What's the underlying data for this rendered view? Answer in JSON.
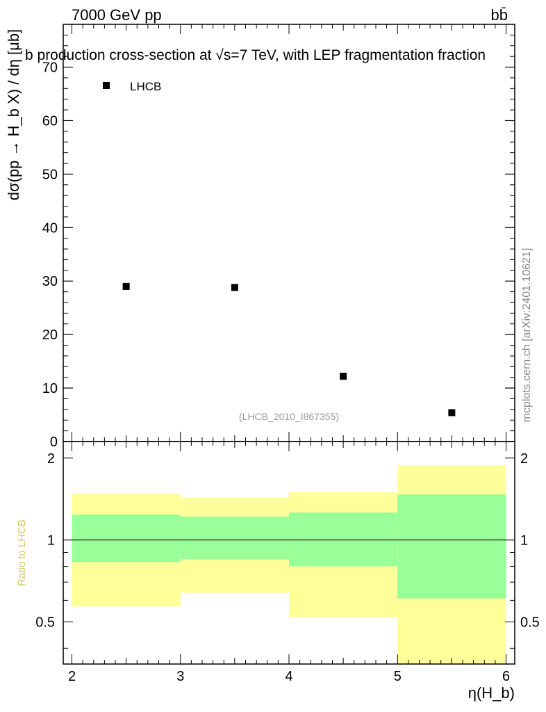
{
  "header": {
    "left": "7000 GeV pp",
    "right": "bb̄"
  },
  "watermark": "mcplots.cern.ch [arXiv:2401.10621]",
  "chart_data": [
    {
      "type": "scatter",
      "title": "b production cross-section at √s=7 TeV, with LEP fragmentation fraction",
      "ylabel": "dσ(pp → H_b X) / dη [μb]",
      "ylim": [
        0,
        78
      ],
      "yticks": [
        0,
        10,
        20,
        30,
        40,
        50,
        60,
        70
      ],
      "xlim": [
        1.92,
        6.08
      ],
      "legend": {
        "position": "top-left",
        "entries": [
          "LHCB"
        ]
      },
      "annotation": "(LHCB_2010_I867355)",
      "series": [
        {
          "name": "LHCB",
          "x": [
            2.5,
            3.5,
            4.5,
            5.5
          ],
          "y": [
            29.0,
            28.8,
            12.2,
            5.4
          ]
        }
      ]
    },
    {
      "type": "area",
      "ylabel": "Ratio to LHCB",
      "ylim": [
        0.35,
        2.3
      ],
      "yticks": [
        0.5,
        1,
        2
      ],
      "xlim": [
        1.92,
        6.08
      ],
      "xticks": [
        2,
        3,
        4,
        5,
        6
      ],
      "xlabel": "η(H_b)",
      "reference_line": 1,
      "bins": [
        {
          "x": [
            2,
            3
          ],
          "inner": [
            0.83,
            1.24
          ],
          "outer": [
            0.57,
            1.48
          ]
        },
        {
          "x": [
            3,
            4
          ],
          "inner": [
            0.85,
            1.22
          ],
          "outer": [
            0.64,
            1.43
          ]
        },
        {
          "x": [
            4,
            5
          ],
          "inner": [
            0.8,
            1.26
          ],
          "outer": [
            0.52,
            1.5
          ]
        },
        {
          "x": [
            5,
            6
          ],
          "inner": [
            0.61,
            1.47
          ],
          "outer": [
            0.34,
            1.88
          ]
        }
      ],
      "colors": {
        "inner": "#99ff99",
        "outer": "#ffff99",
        "ylabel": "#cccc55"
      }
    }
  ]
}
